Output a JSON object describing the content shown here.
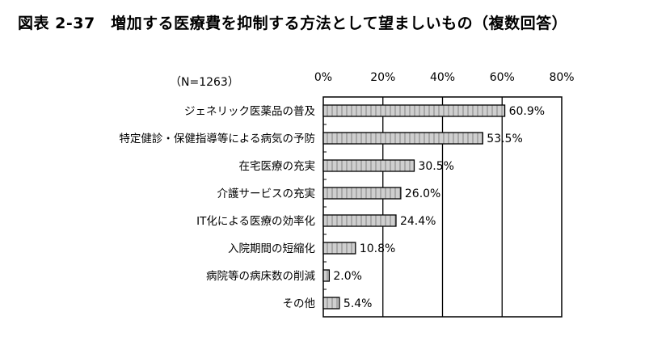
{
  "chart_data": {
    "type": "bar",
    "orientation": "horizontal",
    "title": "図表 2-37　増加する医療費を抑制する方法として望ましいもの（複数回答）",
    "note": "（N=1263）",
    "categories": [
      "ジェネリック医薬品の普及",
      "特定健診・保健指導等による病気の予防",
      "在宅医療の充実",
      "介護サービスの充実",
      "IT化による医療の効率化",
      "入院期間の短縮化",
      "病院等の病床数の削減",
      "その他"
    ],
    "values": [
      60.9,
      53.5,
      30.5,
      26.0,
      24.4,
      10.8,
      2.0,
      5.4
    ],
    "data_labels": [
      "60.9%",
      "53.5%",
      "30.5%",
      "26.0%",
      "24.4%",
      "10.8%",
      "2.0%",
      "5.4%"
    ],
    "xticks": [
      0,
      20,
      40,
      60,
      80
    ],
    "xtick_labels": [
      "0%",
      "20%",
      "40%",
      "60%",
      "80%"
    ],
    "xlim": [
      0,
      80
    ],
    "grid": true,
    "bar_fill": "#c8c8c8",
    "bar_stroke": "#000000"
  }
}
